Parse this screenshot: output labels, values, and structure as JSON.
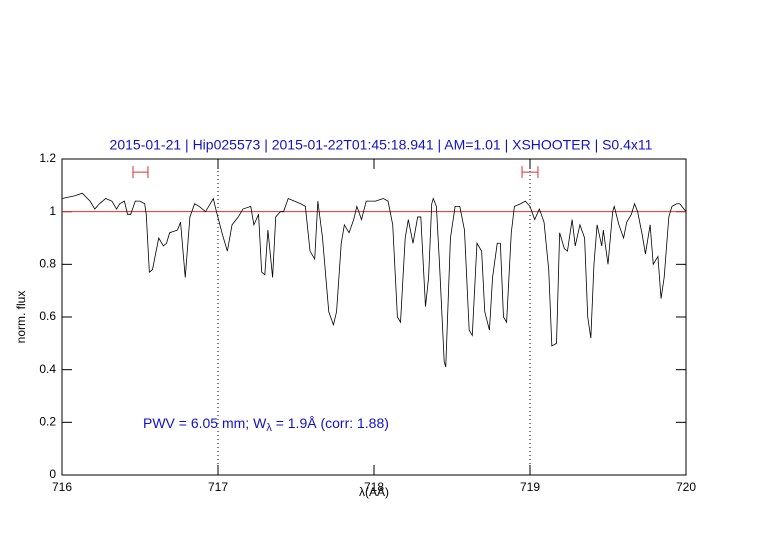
{
  "chart_data": {
    "type": "line",
    "title": "2015-01-21 | Hip025573 | 2015-01-22T01:45:18.941 | AM=1.01 | XSHOOTER | S0.4x11",
    "x_label": "λ(AA)",
    "y_label": "norm. flux",
    "annotation": [
      "PWV = 6.05 mm; W",
      "λ",
      " = 1.9Å (corr: 1.88)"
    ],
    "xlim": [
      716,
      720
    ],
    "ylim": [
      0,
      1.2
    ],
    "xticks": [
      716,
      717,
      718,
      719,
      720
    ],
    "yticks": [
      0,
      0.2,
      0.4,
      0.6,
      0.8,
      1,
      1.2
    ],
    "reference_line": {
      "value": 1,
      "color": "#e03030"
    },
    "vlines": [
      717,
      719
    ],
    "ranges": {
      "color": "#e03030",
      "y": 1.15,
      "spans": [
        [
          716.455,
          716.551
        ],
        [
          718.949,
          719.051
        ]
      ]
    },
    "series": [
      {
        "name": "flux",
        "color": "#000000",
        "x": [
          716.0,
          716.08,
          716.13,
          716.18,
          716.21,
          716.24,
          716.28,
          716.32,
          716.35,
          716.37,
          716.4,
          716.42,
          716.44,
          716.47,
          716.5,
          716.53,
          716.54,
          716.56,
          716.58,
          716.62,
          716.65,
          716.67,
          716.69,
          716.74,
          716.76,
          716.79,
          716.82,
          716.85,
          716.88,
          716.92,
          716.95,
          716.97,
          716.99,
          717.03,
          717.06,
          717.09,
          717.13,
          717.16,
          717.21,
          717.23,
          717.26,
          717.28,
          717.3,
          717.32,
          717.35,
          717.37,
          717.4,
          717.42,
          717.45,
          717.49,
          717.53,
          717.56,
          717.59,
          717.62,
          717.64,
          717.67,
          717.71,
          717.74,
          717.76,
          717.79,
          717.81,
          717.84,
          717.87,
          717.89,
          717.92,
          717.95,
          718.01,
          718.06,
          718.09,
          718.12,
          718.15,
          718.17,
          718.2,
          718.22,
          718.25,
          718.28,
          718.3,
          718.33,
          718.35,
          718.37,
          718.38,
          718.4,
          718.42,
          718.45,
          718.46,
          718.49,
          718.52,
          718.55,
          718.58,
          718.61,
          718.63,
          718.66,
          718.69,
          718.71,
          718.74,
          718.76,
          718.79,
          718.81,
          718.83,
          718.85,
          718.88,
          718.9,
          718.94,
          718.97,
          719.0,
          719.03,
          719.06,
          719.09,
          719.12,
          719.14,
          719.17,
          719.19,
          719.22,
          719.24,
          719.27,
          719.29,
          719.32,
          719.35,
          719.37,
          719.39,
          719.41,
          719.43,
          719.46,
          719.47,
          719.5,
          719.53,
          719.54,
          719.57,
          719.6,
          719.62,
          719.65,
          719.67,
          719.69,
          719.72,
          719.74,
          719.77,
          719.79,
          719.82,
          719.84,
          719.86,
          719.89,
          719.91,
          719.94,
          719.96,
          720.0
        ],
        "values": [
          1.05,
          1.06,
          1.07,
          1.04,
          1.01,
          1.03,
          1.05,
          1.04,
          1.01,
          1.03,
          1.04,
          0.99,
          0.99,
          1.04,
          1.04,
          1.03,
          0.99,
          0.77,
          0.78,
          0.9,
          0.87,
          0.88,
          0.92,
          0.93,
          0.96,
          0.75,
          0.98,
          1.03,
          1.02,
          1.0,
          1.03,
          1.05,
          1.0,
          0.91,
          0.85,
          0.95,
          0.98,
          1.01,
          1.02,
          0.95,
          0.99,
          0.77,
          0.76,
          0.93,
          0.75,
          0.98,
          1.0,
          1.0,
          1.05,
          1.04,
          1.03,
          1.02,
          0.85,
          0.82,
          1.04,
          0.9,
          0.62,
          0.57,
          0.62,
          0.88,
          0.95,
          0.92,
          0.97,
          1.02,
          0.97,
          1.04,
          1.04,
          1.05,
          1.04,
          0.95,
          0.6,
          0.58,
          0.9,
          0.97,
          0.88,
          0.98,
          0.98,
          0.64,
          0.75,
          1.03,
          1.05,
          1.02,
          0.8,
          0.43,
          0.41,
          0.9,
          1.02,
          1.02,
          0.93,
          0.55,
          0.53,
          0.88,
          0.85,
          0.62,
          0.55,
          0.75,
          0.88,
          0.88,
          0.6,
          0.58,
          0.92,
          1.02,
          1.03,
          1.04,
          1.02,
          0.97,
          1.01,
          0.96,
          0.78,
          0.49,
          0.5,
          0.92,
          0.86,
          0.85,
          0.97,
          0.87,
          0.95,
          0.9,
          0.6,
          0.52,
          0.8,
          0.95,
          0.87,
          0.93,
          0.8,
          1.0,
          1.02,
          0.95,
          0.9,
          0.96,
          0.99,
          1.03,
          1.0,
          0.91,
          0.84,
          0.95,
          0.8,
          0.83,
          0.67,
          0.75,
          0.98,
          1.02,
          1.03,
          1.03,
          1.0
        ]
      }
    ]
  }
}
